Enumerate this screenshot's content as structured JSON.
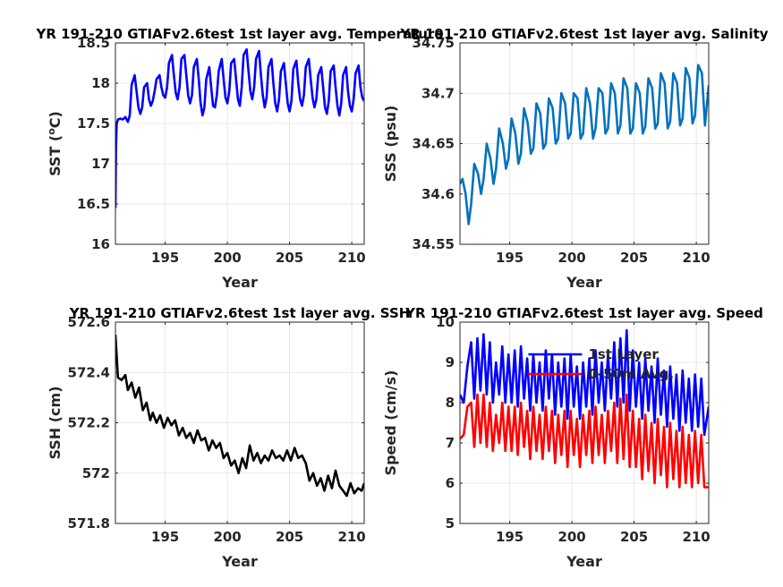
{
  "chart_data": [
    {
      "type": "line",
      "title": "YR 191-210 GTIAFv2.6test 1st layer avg. Temperature",
      "xlabel": "Year",
      "ylabel": "SST (",
      "ylabel_sup": "o",
      "ylabel_suffix": "C)",
      "xlim": [
        191,
        211
      ],
      "ylim": [
        16,
        18.5
      ],
      "xticks": [
        195,
        200,
        205,
        210
      ],
      "yticks": [
        16,
        16.5,
        17,
        17.5,
        18,
        18.5
      ],
      "grid": true,
      "series": [
        {
          "color": "#0000ff",
          "x": [
            191.0,
            191.04,
            191.1,
            191.2,
            191.4,
            191.6,
            191.8,
            192.0,
            192.15,
            192.3,
            192.55,
            192.7,
            192.85,
            193.0,
            193.15,
            193.3,
            193.55,
            193.7,
            193.85,
            194.0,
            194.15,
            194.3,
            194.55,
            194.7,
            194.85,
            195.0,
            195.15,
            195.3,
            195.55,
            195.7,
            195.85,
            196.0,
            196.15,
            196.3,
            196.55,
            196.7,
            196.85,
            197.0,
            197.15,
            197.3,
            197.55,
            197.7,
            197.85,
            198.0,
            198.15,
            198.3,
            198.55,
            198.7,
            198.85,
            199.0,
            199.15,
            199.3,
            199.55,
            199.7,
            199.85,
            200.0,
            200.15,
            200.3,
            200.55,
            200.7,
            200.85,
            201.0,
            201.15,
            201.3,
            201.55,
            201.7,
            201.85,
            202.0,
            202.15,
            202.3,
            202.55,
            202.7,
            202.85,
            203.0,
            203.15,
            203.3,
            203.55,
            203.7,
            203.85,
            204.0,
            204.15,
            204.3,
            204.55,
            204.7,
            204.85,
            205.0,
            205.15,
            205.3,
            205.55,
            205.7,
            205.85,
            206.0,
            206.15,
            206.3,
            206.55,
            206.7,
            206.85,
            207.0,
            207.15,
            207.3,
            207.55,
            207.7,
            207.85,
            208.0,
            208.15,
            208.3,
            208.55,
            208.7,
            208.85,
            209.0,
            209.15,
            209.3,
            209.55,
            209.7,
            209.85,
            210.0,
            210.15,
            210.3,
            210.55,
            210.7,
            210.85,
            211.0
          ],
          "y": [
            16.45,
            17.2,
            17.5,
            17.55,
            17.56,
            17.55,
            17.58,
            17.52,
            17.6,
            17.98,
            18.1,
            17.9,
            17.7,
            17.62,
            17.7,
            17.95,
            18.0,
            17.8,
            17.72,
            17.78,
            17.9,
            18.05,
            18.1,
            17.95,
            17.85,
            17.82,
            17.95,
            18.25,
            18.35,
            18.1,
            17.88,
            17.8,
            17.95,
            18.3,
            18.35,
            18.1,
            17.85,
            17.75,
            17.85,
            18.2,
            18.3,
            18.05,
            17.75,
            17.6,
            17.7,
            18.05,
            18.2,
            17.95,
            17.72,
            17.7,
            17.85,
            18.15,
            18.3,
            18.05,
            17.82,
            17.75,
            17.9,
            18.25,
            18.3,
            18.05,
            17.8,
            17.72,
            17.95,
            18.35,
            18.42,
            18.15,
            17.9,
            17.8,
            17.95,
            18.3,
            18.4,
            18.1,
            17.85,
            17.7,
            17.82,
            18.2,
            18.3,
            18.0,
            17.75,
            17.65,
            17.8,
            18.15,
            18.25,
            18.0,
            17.75,
            17.65,
            17.78,
            18.18,
            18.28,
            18.0,
            17.8,
            17.72,
            17.85,
            18.2,
            18.3,
            18.05,
            17.82,
            17.7,
            17.8,
            18.1,
            18.2,
            17.95,
            17.7,
            17.62,
            17.78,
            18.15,
            18.22,
            17.95,
            17.72,
            17.6,
            17.75,
            18.1,
            18.2,
            17.9,
            17.72,
            17.65,
            17.8,
            18.12,
            18.22,
            17.95,
            17.82,
            17.78
          ]
        }
      ]
    },
    {
      "type": "line",
      "title": "YR 191-210 GTIAFv2.6test 1st layer avg. Salinity",
      "xlabel": "Year",
      "ylabel": "SSS (psu)",
      "xlim": [
        191,
        211
      ],
      "ylim": [
        34.55,
        34.75
      ],
      "xticks": [
        195,
        200,
        205,
        210
      ],
      "yticks": [
        34.55,
        34.6,
        34.65,
        34.7,
        34.75
      ],
      "grid": true,
      "series": [
        {
          "color": "#0072bd",
          "x": [
            191.0,
            191.2,
            191.45,
            191.7,
            191.9,
            192.15,
            192.45,
            192.7,
            192.9,
            193.15,
            193.45,
            193.7,
            193.9,
            194.15,
            194.45,
            194.7,
            194.9,
            195.15,
            195.45,
            195.7,
            195.9,
            196.15,
            196.45,
            196.7,
            196.9,
            197.15,
            197.45,
            197.7,
            197.9,
            198.15,
            198.45,
            198.7,
            198.9,
            199.15,
            199.45,
            199.7,
            199.9,
            200.15,
            200.45,
            200.7,
            200.9,
            201.15,
            201.45,
            201.7,
            201.9,
            202.15,
            202.45,
            202.7,
            202.9,
            203.15,
            203.45,
            203.7,
            203.9,
            204.15,
            204.45,
            204.7,
            204.9,
            205.15,
            205.45,
            205.7,
            205.9,
            206.15,
            206.45,
            206.7,
            206.9,
            207.15,
            207.45,
            207.7,
            207.9,
            208.15,
            208.45,
            208.7,
            208.9,
            209.15,
            209.45,
            209.7,
            209.9,
            210.15,
            210.45,
            210.7,
            211.0
          ],
          "y": [
            34.61,
            34.615,
            34.6,
            34.57,
            34.59,
            34.63,
            34.62,
            34.6,
            34.615,
            34.65,
            34.635,
            34.61,
            34.625,
            34.665,
            34.65,
            34.625,
            34.635,
            34.675,
            34.66,
            34.63,
            34.64,
            34.685,
            34.67,
            34.64,
            34.645,
            34.69,
            34.68,
            34.645,
            34.65,
            34.695,
            34.685,
            34.65,
            34.655,
            34.7,
            34.69,
            34.655,
            34.66,
            34.7,
            34.695,
            34.655,
            34.66,
            34.705,
            34.69,
            34.655,
            34.665,
            34.705,
            34.7,
            34.66,
            34.665,
            34.71,
            34.7,
            34.66,
            34.668,
            34.715,
            34.705,
            34.66,
            34.665,
            34.71,
            34.7,
            34.66,
            34.667,
            34.715,
            34.705,
            34.665,
            34.67,
            34.72,
            34.71,
            34.665,
            34.672,
            34.72,
            34.71,
            34.668,
            34.675,
            34.725,
            34.715,
            34.67,
            34.678,
            34.728,
            34.72,
            34.668,
            34.708
          ]
        }
      ]
    },
    {
      "type": "line",
      "title": "YR 191-210 GTIAFv2.6test 1st layer avg. SSH",
      "xlabel": "Year",
      "ylabel": "SSH (cm)",
      "xlim": [
        191,
        211
      ],
      "ylim": [
        571.8,
        572.6
      ],
      "xticks": [
        195,
        200,
        205,
        210
      ],
      "yticks": [
        571.8,
        572,
        572.2,
        572.4,
        572.6
      ],
      "grid": true,
      "series": [
        {
          "color": "#000000",
          "x": [
            191.0,
            191.2,
            191.5,
            191.8,
            192.0,
            192.3,
            192.6,
            192.9,
            193.2,
            193.5,
            193.8,
            194.0,
            194.3,
            194.6,
            194.9,
            195.2,
            195.5,
            195.8,
            196.1,
            196.4,
            196.7,
            197.0,
            197.3,
            197.6,
            197.9,
            198.2,
            198.5,
            198.8,
            199.1,
            199.4,
            199.7,
            200.0,
            200.3,
            200.6,
            200.9,
            201.2,
            201.5,
            201.8,
            202.1,
            202.4,
            202.7,
            203.0,
            203.3,
            203.6,
            203.9,
            204.2,
            204.5,
            204.8,
            205.1,
            205.4,
            205.7,
            206.0,
            206.3,
            206.6,
            206.9,
            207.2,
            207.5,
            207.8,
            208.1,
            208.4,
            208.7,
            209.0,
            209.3,
            209.6,
            209.9,
            210.2,
            210.5,
            210.8,
            211.0
          ],
          "y": [
            572.55,
            572.38,
            572.37,
            572.39,
            572.33,
            572.36,
            572.3,
            572.34,
            572.25,
            572.28,
            572.21,
            572.24,
            572.2,
            572.23,
            572.18,
            572.22,
            572.19,
            572.21,
            572.15,
            572.18,
            572.14,
            572.16,
            572.12,
            572.17,
            572.13,
            572.14,
            572.09,
            572.13,
            572.1,
            572.12,
            572.06,
            572.08,
            572.03,
            572.05,
            572.0,
            572.06,
            572.02,
            572.11,
            572.05,
            572.08,
            572.04,
            572.07,
            572.05,
            572.09,
            572.06,
            572.07,
            572.05,
            572.09,
            572.05,
            572.1,
            572.06,
            572.07,
            572.04,
            571.97,
            572.0,
            571.95,
            571.98,
            571.93,
            571.99,
            571.94,
            572.01,
            571.95,
            571.93,
            571.91,
            571.96,
            571.92,
            571.94,
            571.93,
            571.96
          ]
        }
      ]
    },
    {
      "type": "line",
      "title": "YR 191-210 GTIAFv2.6test 1st layer avg. Speed",
      "xlabel": "Year",
      "ylabel": "Speed (cm/s)",
      "xlim": [
        191,
        211
      ],
      "ylim": [
        5,
        10
      ],
      "xticks": [
        195,
        200,
        205,
        210
      ],
      "yticks": [
        5,
        6,
        7,
        8,
        9,
        10
      ],
      "grid": true,
      "legend": "top",
      "series": [
        {
          "name": "1st Layer",
          "color": "#0000ff",
          "x": [
            191.0,
            191.3,
            191.6,
            191.9,
            192.15,
            192.4,
            192.65,
            192.9,
            193.15,
            193.4,
            193.65,
            193.9,
            194.15,
            194.4,
            194.65,
            194.9,
            195.15,
            195.4,
            195.65,
            195.9,
            196.15,
            196.4,
            196.65,
            196.9,
            197.15,
            197.4,
            197.65,
            197.9,
            198.15,
            198.4,
            198.65,
            198.9,
            199.15,
            199.4,
            199.65,
            199.9,
            200.15,
            200.4,
            200.65,
            200.9,
            201.15,
            201.4,
            201.65,
            201.9,
            202.15,
            202.4,
            202.65,
            202.9,
            203.15,
            203.4,
            203.65,
            203.9,
            204.15,
            204.4,
            204.65,
            204.9,
            205.15,
            205.4,
            205.65,
            205.9,
            206.15,
            206.4,
            206.65,
            206.9,
            207.15,
            207.4,
            207.65,
            207.9,
            208.15,
            208.4,
            208.65,
            208.9,
            209.15,
            209.4,
            209.65,
            209.9,
            210.15,
            210.4,
            210.65,
            211.0
          ],
          "y": [
            8.2,
            8.0,
            8.9,
            9.5,
            8.1,
            9.6,
            8.3,
            9.7,
            8.2,
            9.5,
            8.0,
            9.0,
            8.2,
            9.4,
            8.0,
            9.2,
            8.0,
            9.3,
            7.9,
            9.4,
            8.1,
            9.1,
            7.8,
            9.2,
            8.0,
            9.0,
            7.8,
            9.3,
            8.1,
            9.2,
            7.7,
            9.0,
            7.9,
            9.1,
            7.6,
            9.2,
            7.9,
            8.9,
            7.6,
            9.0,
            7.9,
            9.1,
            7.7,
            9.3,
            8.0,
            9.0,
            7.8,
            9.2,
            8.1,
            9.5,
            7.9,
            9.6,
            8.0,
            9.8,
            7.8,
            9.3,
            7.9,
            9.0,
            7.6,
            9.1,
            7.8,
            8.9,
            7.5,
            9.1,
            7.7,
            8.8,
            7.4,
            8.9,
            7.6,
            8.7,
            7.3,
            8.8,
            7.5,
            8.6,
            7.3,
            8.7,
            7.4,
            8.6,
            7.2,
            7.9
          ]
        },
        {
          "name": "0-50m Avg.",
          "color": "#ff0000",
          "x": [
            191.0,
            191.3,
            191.6,
            191.9,
            192.15,
            192.4,
            192.65,
            192.9,
            193.15,
            193.4,
            193.65,
            193.9,
            194.15,
            194.4,
            194.65,
            194.9,
            195.15,
            195.4,
            195.65,
            195.9,
            196.15,
            196.4,
            196.65,
            196.9,
            197.15,
            197.4,
            197.65,
            197.9,
            198.15,
            198.4,
            198.65,
            198.9,
            199.15,
            199.4,
            199.65,
            199.9,
            200.15,
            200.4,
            200.65,
            200.9,
            201.15,
            201.4,
            201.65,
            201.9,
            202.15,
            202.4,
            202.65,
            202.9,
            203.15,
            203.4,
            203.65,
            203.9,
            204.15,
            204.4,
            204.65,
            204.9,
            205.15,
            205.4,
            205.65,
            205.9,
            206.15,
            206.4,
            206.65,
            206.9,
            207.15,
            207.4,
            207.65,
            207.9,
            208.15,
            208.4,
            208.65,
            208.9,
            209.15,
            209.4,
            209.65,
            209.9,
            210.15,
            210.4,
            210.65,
            211.0
          ],
          "y": [
            7.1,
            7.2,
            7.9,
            8.0,
            6.9,
            8.2,
            7.0,
            8.2,
            6.9,
            8.0,
            6.8,
            7.7,
            7.0,
            8.0,
            6.8,
            7.9,
            6.8,
            7.9,
            6.7,
            8.0,
            6.9,
            7.8,
            6.6,
            7.9,
            6.8,
            7.7,
            6.6,
            7.9,
            6.8,
            7.8,
            6.5,
            7.7,
            6.7,
            7.8,
            6.4,
            7.8,
            6.7,
            7.6,
            6.4,
            7.7,
            6.7,
            7.8,
            6.5,
            7.9,
            6.7,
            7.7,
            6.5,
            7.8,
            6.8,
            8.0,
            6.5,
            8.1,
            6.6,
            8.2,
            6.4,
            7.8,
            6.4,
            7.6,
            6.1,
            7.7,
            6.3,
            7.5,
            6.0,
            7.6,
            6.2,
            7.4,
            5.9,
            7.5,
            6.1,
            7.3,
            5.9,
            7.4,
            6.0,
            7.2,
            5.9,
            7.3,
            6.0,
            7.2,
            5.9,
            5.9
          ]
        }
      ]
    }
  ]
}
